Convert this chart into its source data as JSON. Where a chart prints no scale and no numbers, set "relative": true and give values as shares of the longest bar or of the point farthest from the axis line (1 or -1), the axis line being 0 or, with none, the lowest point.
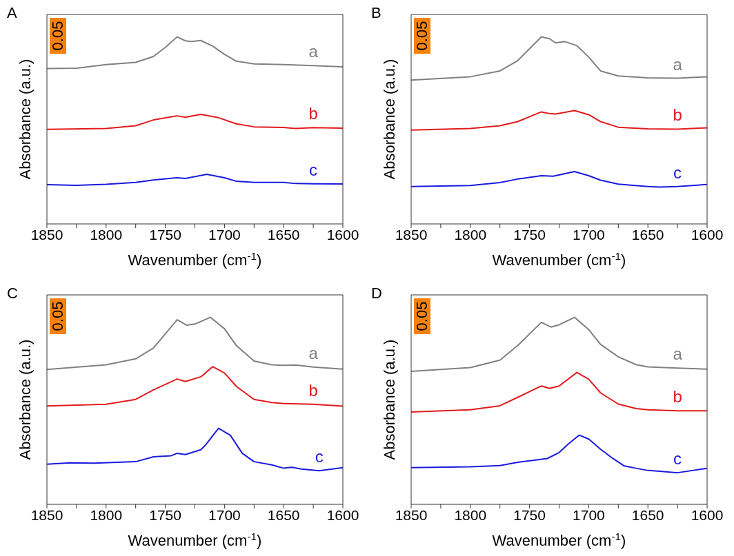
{
  "chart_data": [
    {
      "type": "line",
      "title": "A",
      "xlabel": "Wavenumber (cm$^{-1}$)",
      "ylabel": "Absorbance (a.u.)",
      "relative": true,
      "xlim": [
        1850,
        1600
      ],
      "xticks": [
        1850,
        {
          "value": 1825,
          "label": null
        },
        1800,
        {
          "value": 1775,
          "label": null
        },
        1750,
        {
          "value": 1725,
          "label": null
        },
        1700,
        {
          "value": 1675,
          "label": null
        },
        1650,
        {
          "value": 1625,
          "label": null
        },
        1600
      ],
      "marker": "none",
      "line_style": "solid",
      "annotations": [
        "0.05"
      ],
      "series": [
        {
          "name": "a",
          "color": "#808080",
          "x": [
            1850,
            1825,
            1800,
            1775,
            1760,
            1750,
            1740,
            1733,
            1728,
            1720,
            1710,
            1700,
            1690,
            1675,
            1650,
            1625,
            1600
          ],
          "values": [
            0.831,
            0.833,
            0.852,
            0.864,
            0.895,
            0.944,
            1,
            0.979,
            0.975,
            0.981,
            0.951,
            0.907,
            0.87,
            0.856,
            0.852,
            0.846,
            0.84
          ]
        },
        {
          "name": "b",
          "color": "#e31a1c",
          "x": [
            1850,
            1800,
            1775,
            1760,
            1740,
            1733,
            1720,
            1705,
            1690,
            1675,
            1650,
            1640,
            1625,
            1600
          ],
          "values": [
            0.506,
            0.51,
            0.525,
            0.556,
            0.578,
            0.57,
            0.586,
            0.568,
            0.535,
            0.519,
            0.516,
            0.51,
            0.515,
            0.512
          ]
        },
        {
          "name": "c",
          "color": "#1a1adf",
          "x": [
            1850,
            1825,
            1800,
            1775,
            1760,
            1740,
            1733,
            1715,
            1700,
            1690,
            1675,
            1650,
            1640,
            1625,
            1600
          ],
          "values": [
            0.21,
            0.206,
            0.212,
            0.222,
            0.235,
            0.247,
            0.243,
            0.265,
            0.247,
            0.228,
            0.222,
            0.222,
            0.216,
            0.215,
            0.214
          ]
        }
      ]
    },
    {
      "type": "line",
      "title": "B",
      "xlabel": "Wavenumber (cm$^{-1}$)",
      "ylabel": "Absorbance (a.u.)",
      "relative": true,
      "xlim": [
        1850,
        1600
      ],
      "xticks": [
        1850,
        {
          "value": 1825,
          "label": null
        },
        1800,
        {
          "value": 1775,
          "label": null
        },
        1750,
        {
          "value": 1725,
          "label": null
        },
        1700,
        {
          "value": 1675,
          "label": null
        },
        1650,
        {
          "value": 1625,
          "label": null
        },
        1600
      ],
      "marker": "none",
      "line_style": "solid",
      "annotations": [
        "0.05"
      ],
      "series": [
        {
          "name": "a",
          "color": "#808080",
          "x": [
            1850,
            1800,
            1775,
            1760,
            1740,
            1733,
            1728,
            1720,
            1710,
            1700,
            1690,
            1675,
            1650,
            1625,
            1600
          ],
          "values": [
            0.769,
            0.787,
            0.818,
            0.873,
            1,
            0.99,
            0.968,
            0.975,
            0.953,
            0.892,
            0.818,
            0.791,
            0.781,
            0.779,
            0.787
          ]
        },
        {
          "name": "b",
          "color": "#e31a1c",
          "x": [
            1850,
            1800,
            1775,
            1760,
            1740,
            1733,
            1728,
            1712,
            1700,
            1690,
            1675,
            1650,
            1625,
            1600
          ],
          "values": [
            0.502,
            0.51,
            0.525,
            0.547,
            0.599,
            0.59,
            0.588,
            0.606,
            0.584,
            0.547,
            0.517,
            0.508,
            0.507,
            0.514
          ]
        },
        {
          "name": "c",
          "color": "#1a1adf",
          "x": [
            1850,
            1800,
            1775,
            1760,
            1740,
            1730,
            1712,
            1700,
            1690,
            1675,
            1650,
            1640,
            1625,
            1600
          ],
          "values": [
            0.2,
            0.205,
            0.221,
            0.24,
            0.258,
            0.255,
            0.28,
            0.258,
            0.234,
            0.213,
            0.2,
            0.197,
            0.2,
            0.211
          ]
        }
      ]
    },
    {
      "type": "line",
      "title": "C",
      "xlabel": "Wavenumber (cm$^{-1}$)",
      "ylabel": "Absorbance (a.u.)",
      "relative": true,
      "xlim": [
        1850,
        1600
      ],
      "xticks": [
        1850,
        {
          "value": 1825,
          "label": null
        },
        1800,
        {
          "value": 1775,
          "label": null
        },
        1750,
        {
          "value": 1725,
          "label": null
        },
        1700,
        {
          "value": 1675,
          "label": null
        },
        1650,
        {
          "value": 1625,
          "label": null
        },
        1600
      ],
      "marker": "none",
      "line_style": "solid",
      "annotations": [
        "0.05"
      ],
      "series": [
        {
          "name": "a",
          "color": "#808080",
          "x": [
            1850,
            1800,
            1775,
            1760,
            1740,
            1732,
            1725,
            1712,
            1700,
            1690,
            1675,
            1660,
            1650,
            1640,
            1625,
            1600
          ],
          "values": [
            0.721,
            0.746,
            0.778,
            0.836,
            0.987,
            0.958,
            0.964,
            1,
            0.939,
            0.849,
            0.766,
            0.746,
            0.743,
            0.745,
            0.734,
            0.723
          ]
        },
        {
          "name": "b",
          "color": "#e31a1c",
          "x": [
            1850,
            1800,
            1775,
            1760,
            1740,
            1733,
            1720,
            1710,
            1700,
            1690,
            1675,
            1660,
            1650,
            1625,
            1600
          ],
          "values": [
            0.526,
            0.535,
            0.561,
            0.612,
            0.67,
            0.657,
            0.682,
            0.736,
            0.702,
            0.631,
            0.561,
            0.544,
            0.539,
            0.535,
            0.525
          ]
        },
        {
          "name": "c",
          "color": "#1a1adf",
          "x": [
            1850,
            1830,
            1810,
            1775,
            1760,
            1745,
            1740,
            1733,
            1720,
            1716,
            1705,
            1695,
            1685,
            1675,
            1660,
            1650,
            1643,
            1635,
            1620,
            1600
          ],
          "values": [
            0.215,
            0.222,
            0.22,
            0.228,
            0.254,
            0.26,
            0.273,
            0.266,
            0.292,
            0.317,
            0.407,
            0.369,
            0.273,
            0.228,
            0.211,
            0.193,
            0.198,
            0.189,
            0.18,
            0.196
          ]
        }
      ]
    },
    {
      "type": "line",
      "title": "D",
      "xlabel": "Wavenumber (cm$^{-1}$)",
      "ylabel": "Absorbance (a.u.)",
      "relative": true,
      "xlim": [
        1850,
        1600
      ],
      "xticks": [
        1850,
        {
          "value": 1825,
          "label": null
        },
        1800,
        {
          "value": 1775,
          "label": null
        },
        1750,
        {
          "value": 1725,
          "label": null
        },
        1700,
        {
          "value": 1675,
          "label": null
        },
        1650,
        {
          "value": 1625,
          "label": null
        },
        1600
      ],
      "marker": "none",
      "line_style": "solid",
      "annotations": [
        "0.05"
      ],
      "series": [
        {
          "name": "a",
          "color": "#808080",
          "x": [
            1850,
            1800,
            1775,
            1760,
            1740,
            1732,
            1725,
            1712,
            1700,
            1690,
            1675,
            1660,
            1650,
            1625,
            1600
          ],
          "values": [
            0.711,
            0.731,
            0.771,
            0.849,
            0.973,
            0.948,
            0.96,
            1,
            0.934,
            0.855,
            0.789,
            0.747,
            0.735,
            0.729,
            0.723
          ]
        },
        {
          "name": "b",
          "color": "#e31a1c",
          "x": [
            1850,
            1800,
            1775,
            1760,
            1740,
            1733,
            1725,
            1710,
            1700,
            1690,
            1675,
            1660,
            1650,
            1625,
            1600
          ],
          "values": [
            0.494,
            0.506,
            0.527,
            0.572,
            0.633,
            0.62,
            0.633,
            0.705,
            0.669,
            0.596,
            0.536,
            0.512,
            0.506,
            0.5,
            0.5
          ]
        },
        {
          "name": "c",
          "color": "#1a1adf",
          "x": [
            1850,
            1800,
            1775,
            1760,
            1745,
            1735,
            1725,
            1718,
            1708,
            1700,
            1690,
            1680,
            1670,
            1660,
            1650,
            1640,
            1625,
            1600
          ],
          "values": [
            0.196,
            0.201,
            0.207,
            0.225,
            0.237,
            0.245,
            0.277,
            0.319,
            0.37,
            0.349,
            0.295,
            0.247,
            0.205,
            0.193,
            0.181,
            0.177,
            0.169,
            0.193
          ]
        }
      ]
    }
  ]
}
